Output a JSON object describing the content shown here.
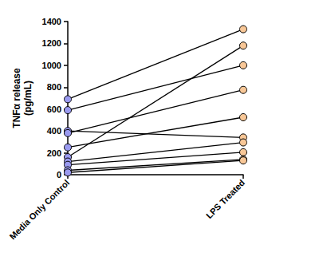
{
  "chart_data": {
    "type": "line",
    "ylabel": "TNFα release\n(pg/mL)",
    "categories": [
      "Media Only Control",
      "LPS Treated"
    ],
    "series": [
      {
        "values": [
          690,
          1330
        ]
      },
      {
        "values": [
          590,
          1000
        ]
      },
      {
        "values": [
          400,
          340
        ]
      },
      {
        "values": [
          380,
          775
        ]
      },
      {
        "values": [
          250,
          525
        ]
      },
      {
        "values": [
          160,
          1180
        ]
      },
      {
        "values": [
          120,
          295
        ]
      },
      {
        "values": [
          90,
          205
        ]
      },
      {
        "values": [
          40,
          140
        ]
      },
      {
        "values": [
          20,
          130
        ]
      }
    ],
    "colors": [
      "#9a9af0",
      "#f8c797"
    ],
    "marker": "circle",
    "ylim": [
      0,
      1400
    ],
    "yticks": [
      0,
      200,
      400,
      600,
      800,
      1000,
      1200,
      1400
    ]
  }
}
